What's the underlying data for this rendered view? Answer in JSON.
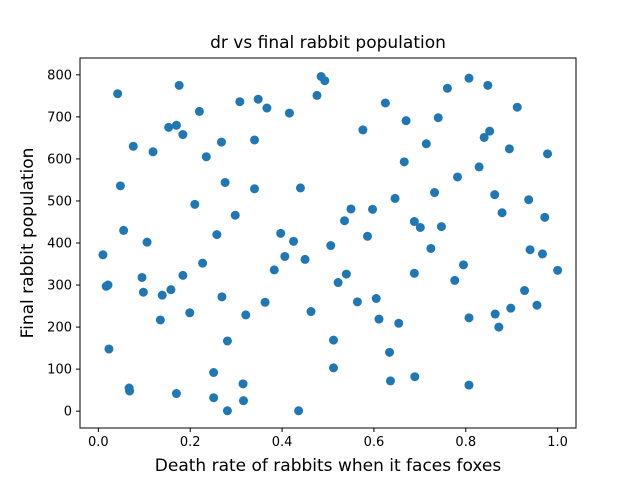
{
  "chart_data": {
    "type": "scatter",
    "title": "dr vs final rabbit population",
    "xlabel": "Death rate of rabbits when it faces foxes",
    "ylabel": "Final rabbit population",
    "xlim": [
      -0.04,
      1.04
    ],
    "ylim": [
      -40,
      840
    ],
    "xticks": [
      0.0,
      0.2,
      0.4,
      0.6,
      0.8,
      1.0
    ],
    "xtick_labels": [
      "0.0",
      "0.2",
      "0.4",
      "0.6",
      "0.8",
      "1.0"
    ],
    "yticks": [
      0,
      100,
      200,
      300,
      400,
      500,
      600,
      700,
      800
    ],
    "ytick_labels": [
      "0",
      "100",
      "200",
      "300",
      "400",
      "500",
      "600",
      "700",
      "800"
    ],
    "grid": false,
    "marker_color": "#1f77b4",
    "points": [
      {
        "x": 0.01,
        "y": 372
      },
      {
        "x": 0.017,
        "y": 297
      },
      {
        "x": 0.021,
        "y": 300
      },
      {
        "x": 0.023,
        "y": 148
      },
      {
        "x": 0.042,
        "y": 755
      },
      {
        "x": 0.048,
        "y": 536
      },
      {
        "x": 0.055,
        "y": 430
      },
      {
        "x": 0.067,
        "y": 55
      },
      {
        "x": 0.068,
        "y": 48
      },
      {
        "x": 0.076,
        "y": 630
      },
      {
        "x": 0.095,
        "y": 318
      },
      {
        "x": 0.098,
        "y": 283
      },
      {
        "x": 0.106,
        "y": 402
      },
      {
        "x": 0.119,
        "y": 617
      },
      {
        "x": 0.135,
        "y": 217
      },
      {
        "x": 0.139,
        "y": 276
      },
      {
        "x": 0.153,
        "y": 675
      },
      {
        "x": 0.158,
        "y": 289
      },
      {
        "x": 0.17,
        "y": 680
      },
      {
        "x": 0.176,
        "y": 775
      },
      {
        "x": 0.184,
        "y": 658
      },
      {
        "x": 0.184,
        "y": 323
      },
      {
        "x": 0.17,
        "y": 42
      },
      {
        "x": 0.199,
        "y": 234
      },
      {
        "x": 0.21,
        "y": 492
      },
      {
        "x": 0.22,
        "y": 713
      },
      {
        "x": 0.227,
        "y": 352
      },
      {
        "x": 0.235,
        "y": 605
      },
      {
        "x": 0.251,
        "y": 92
      },
      {
        "x": 0.251,
        "y": 32
      },
      {
        "x": 0.258,
        "y": 420
      },
      {
        "x": 0.268,
        "y": 640
      },
      {
        "x": 0.269,
        "y": 272
      },
      {
        "x": 0.276,
        "y": 544
      },
      {
        "x": 0.281,
        "y": 167
      },
      {
        "x": 0.281,
        "y": 1
      },
      {
        "x": 0.298,
        "y": 466
      },
      {
        "x": 0.308,
        "y": 736
      },
      {
        "x": 0.315,
        "y": 65
      },
      {
        "x": 0.316,
        "y": 25
      },
      {
        "x": 0.321,
        "y": 229
      },
      {
        "x": 0.34,
        "y": 645
      },
      {
        "x": 0.34,
        "y": 529
      },
      {
        "x": 0.348,
        "y": 742
      },
      {
        "x": 0.363,
        "y": 259
      },
      {
        "x": 0.367,
        "y": 721
      },
      {
        "x": 0.383,
        "y": 336
      },
      {
        "x": 0.397,
        "y": 423
      },
      {
        "x": 0.406,
        "y": 368
      },
      {
        "x": 0.416,
        "y": 709
      },
      {
        "x": 0.425,
        "y": 404
      },
      {
        "x": 0.436,
        "y": 1
      },
      {
        "x": 0.44,
        "y": 531
      },
      {
        "x": 0.45,
        "y": 361
      },
      {
        "x": 0.463,
        "y": 237
      },
      {
        "x": 0.476,
        "y": 751
      },
      {
        "x": 0.485,
        "y": 796
      },
      {
        "x": 0.493,
        "y": 786
      },
      {
        "x": 0.506,
        "y": 394
      },
      {
        "x": 0.512,
        "y": 169
      },
      {
        "x": 0.512,
        "y": 103
      },
      {
        "x": 0.522,
        "y": 306
      },
      {
        "x": 0.536,
        "y": 453
      },
      {
        "x": 0.54,
        "y": 326
      },
      {
        "x": 0.55,
        "y": 481
      },
      {
        "x": 0.564,
        "y": 260
      },
      {
        "x": 0.576,
        "y": 669
      },
      {
        "x": 0.586,
        "y": 416
      },
      {
        "x": 0.597,
        "y": 480
      },
      {
        "x": 0.605,
        "y": 268
      },
      {
        "x": 0.611,
        "y": 219
      },
      {
        "x": 0.625,
        "y": 733
      },
      {
        "x": 0.634,
        "y": 140
      },
      {
        "x": 0.636,
        "y": 72
      },
      {
        "x": 0.646,
        "y": 506
      },
      {
        "x": 0.654,
        "y": 209
      },
      {
        "x": 0.666,
        "y": 593
      },
      {
        "x": 0.67,
        "y": 691
      },
      {
        "x": 0.688,
        "y": 451
      },
      {
        "x": 0.688,
        "y": 328
      },
      {
        "x": 0.689,
        "y": 82
      },
      {
        "x": 0.701,
        "y": 437
      },
      {
        "x": 0.714,
        "y": 636
      },
      {
        "x": 0.724,
        "y": 387
      },
      {
        "x": 0.732,
        "y": 520
      },
      {
        "x": 0.74,
        "y": 698
      },
      {
        "x": 0.747,
        "y": 439
      },
      {
        "x": 0.76,
        "y": 768
      },
      {
        "x": 0.776,
        "y": 311
      },
      {
        "x": 0.782,
        "y": 557
      },
      {
        "x": 0.795,
        "y": 348
      },
      {
        "x": 0.807,
        "y": 792
      },
      {
        "x": 0.807,
        "y": 222
      },
      {
        "x": 0.807,
        "y": 62
      },
      {
        "x": 0.829,
        "y": 581
      },
      {
        "x": 0.84,
        "y": 651
      },
      {
        "x": 0.848,
        "y": 775
      },
      {
        "x": 0.852,
        "y": 666
      },
      {
        "x": 0.863,
        "y": 515
      },
      {
        "x": 0.864,
        "y": 231
      },
      {
        "x": 0.872,
        "y": 200
      },
      {
        "x": 0.879,
        "y": 472
      },
      {
        "x": 0.895,
        "y": 624
      },
      {
        "x": 0.898,
        "y": 245
      },
      {
        "x": 0.912,
        "y": 723
      },
      {
        "x": 0.928,
        "y": 287
      },
      {
        "x": 0.937,
        "y": 503
      },
      {
        "x": 0.94,
        "y": 384
      },
      {
        "x": 0.955,
        "y": 252
      },
      {
        "x": 0.967,
        "y": 374
      },
      {
        "x": 0.972,
        "y": 461
      },
      {
        "x": 0.978,
        "y": 612
      },
      {
        "x": 1.0,
        "y": 335
      }
    ]
  }
}
